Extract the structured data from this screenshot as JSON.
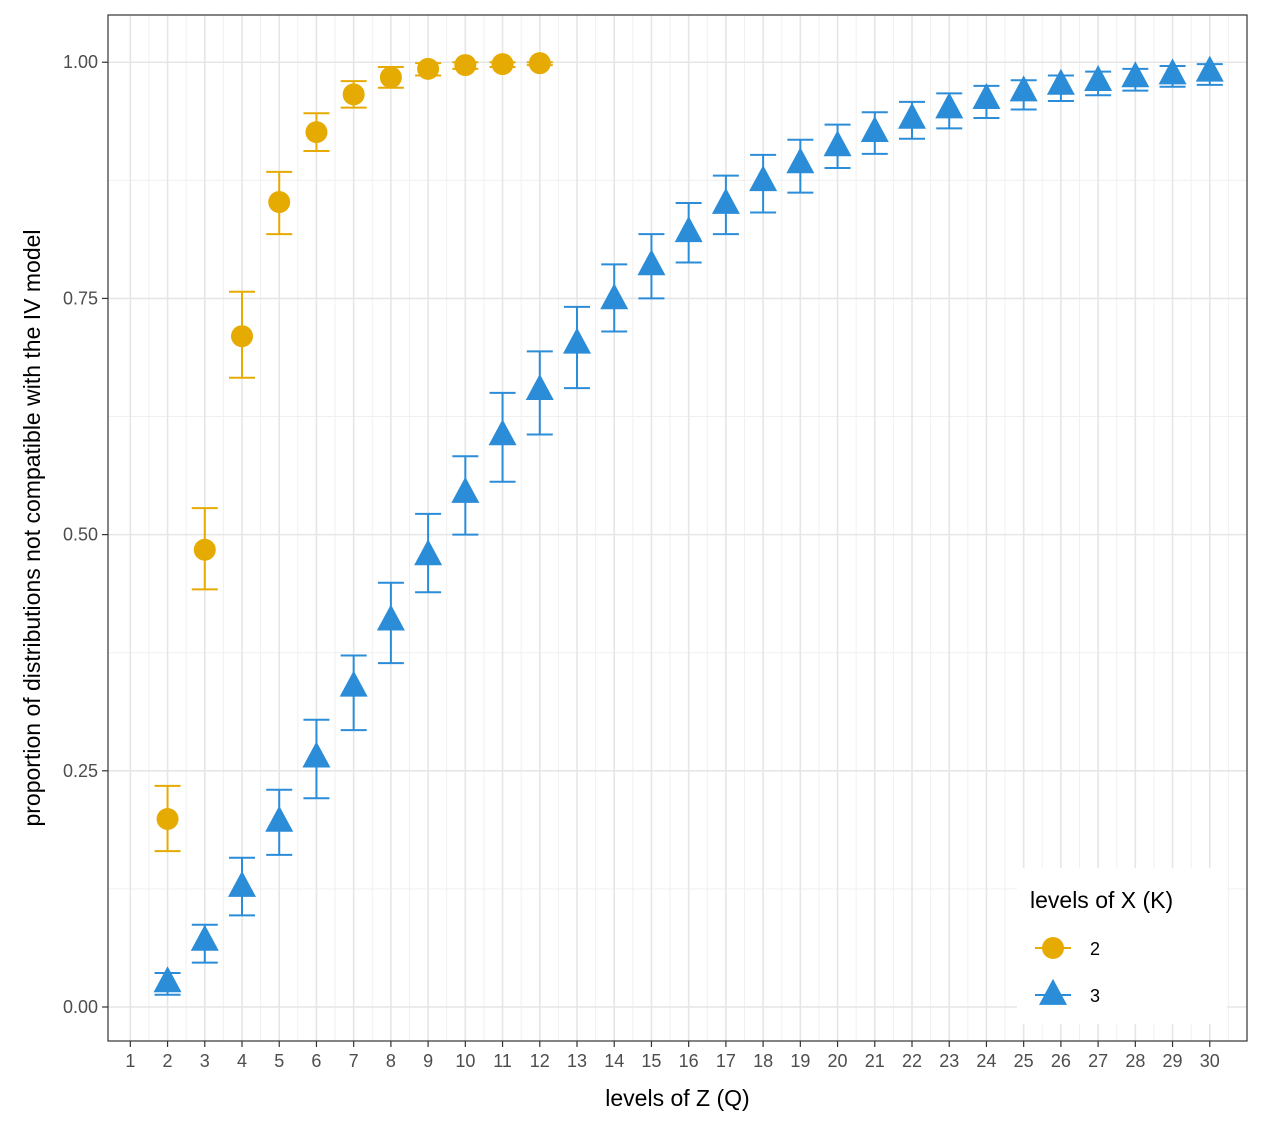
{
  "chart_data": {
    "type": "scatter",
    "xlabel": "levels of Z (Q)",
    "ylabel": "proportion of distributions not compatible with the IV model",
    "x_ticks": [
      "1",
      "2",
      "3",
      "4",
      "5",
      "6",
      "7",
      "8",
      "9",
      "10",
      "11",
      "12",
      "13",
      "14",
      "15",
      "16",
      "17",
      "18",
      "19",
      "20",
      "21",
      "22",
      "23",
      "24",
      "25",
      "26",
      "27",
      "28",
      "29",
      "30"
    ],
    "y_ticks": [
      "0.00",
      "0.25",
      "0.50",
      "0.75",
      "1.00"
    ],
    "xlim": [
      0.4,
      31.0
    ],
    "ylim": [
      -0.036,
      1.05
    ],
    "grid": true,
    "legend": {
      "title": "levels of X (K)",
      "position": "bottom-right"
    },
    "series": [
      {
        "name": "2",
        "marker": "circle",
        "color": "#E6AB02",
        "x": [
          2,
          3,
          4,
          5,
          6,
          7,
          8,
          9,
          10,
          11,
          12
        ],
        "y": [
          0.199,
          0.484,
          0.71,
          0.852,
          0.926,
          0.966,
          0.984,
          0.993,
          0.997,
          0.998,
          0.999
        ],
        "lower": [
          0.165,
          0.442,
          0.666,
          0.818,
          0.906,
          0.952,
          0.973,
          0.986,
          0.993,
          0.995,
          0.997
        ],
        "upper": [
          0.234,
          0.528,
          0.757,
          0.884,
          0.946,
          0.98,
          0.995,
          0.999,
          1.0,
          1.0,
          1.0
        ]
      },
      {
        "name": "3",
        "marker": "triangle",
        "color": "#2B8CD8",
        "x": [
          2,
          3,
          4,
          5,
          6,
          7,
          8,
          9,
          10,
          11,
          12,
          13,
          14,
          15,
          16,
          17,
          18,
          19,
          20,
          21,
          22,
          23,
          24,
          25,
          26,
          27,
          28,
          29,
          30
        ],
        "y": [
          0.026,
          0.07,
          0.127,
          0.196,
          0.264,
          0.339,
          0.409,
          0.478,
          0.544,
          0.605,
          0.653,
          0.702,
          0.749,
          0.785,
          0.82,
          0.85,
          0.874,
          0.893,
          0.911,
          0.926,
          0.94,
          0.951,
          0.961,
          0.969,
          0.976,
          0.98,
          0.984,
          0.987,
          0.99
        ],
        "lower": [
          0.013,
          0.047,
          0.097,
          0.161,
          0.221,
          0.293,
          0.364,
          0.439,
          0.5,
          0.556,
          0.606,
          0.655,
          0.715,
          0.75,
          0.788,
          0.818,
          0.841,
          0.862,
          0.888,
          0.903,
          0.919,
          0.93,
          0.941,
          0.95,
          0.959,
          0.965,
          0.97,
          0.974,
          0.976
        ],
        "upper": [
          0.036,
          0.087,
          0.158,
          0.23,
          0.304,
          0.372,
          0.449,
          0.522,
          0.583,
          0.65,
          0.694,
          0.741,
          0.786,
          0.818,
          0.851,
          0.88,
          0.902,
          0.918,
          0.934,
          0.947,
          0.958,
          0.967,
          0.975,
          0.981,
          0.986,
          0.99,
          0.993,
          0.996,
          0.998
        ]
      }
    ]
  }
}
